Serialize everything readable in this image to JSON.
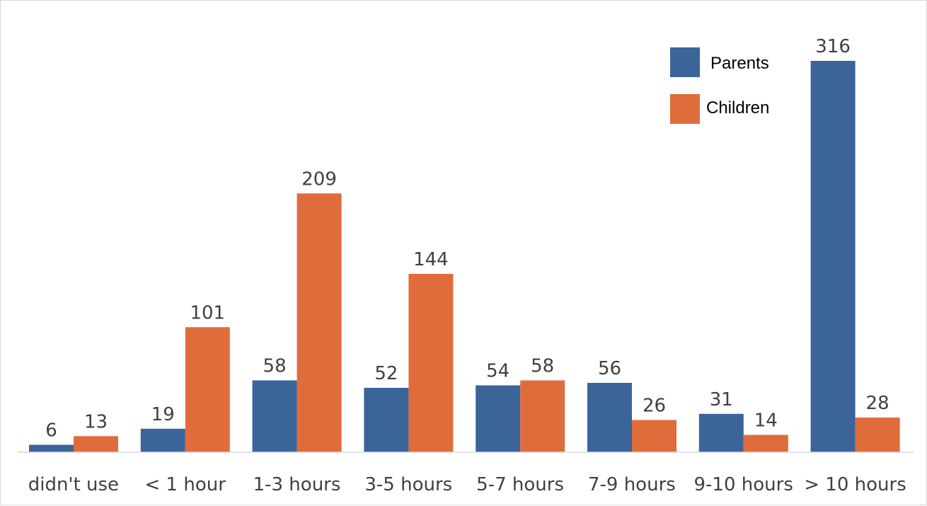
{
  "chart_data": {
    "type": "bar",
    "title": "",
    "xlabel": "",
    "ylabel": "",
    "categories": [
      "didn't use",
      "< 1 hour",
      "1-3 hours",
      "3-5 hours",
      "5-7 hours",
      "7-9 hours",
      "9-10 hours",
      "> 10 hours"
    ],
    "series": [
      {
        "name": "Parents",
        "color": "#3b6499",
        "values": [
          6,
          19,
          58,
          52,
          54,
          56,
          31,
          316
        ]
      },
      {
        "name": "Children",
        "color": "#e06c3c",
        "values": [
          13,
          101,
          209,
          144,
          58,
          26,
          14,
          28
        ]
      }
    ],
    "ylim": [
      0,
      316
    ],
    "grid": false,
    "data_labels": true,
    "legend_position": "top-right",
    "axis_color": "#d9d9d9"
  }
}
